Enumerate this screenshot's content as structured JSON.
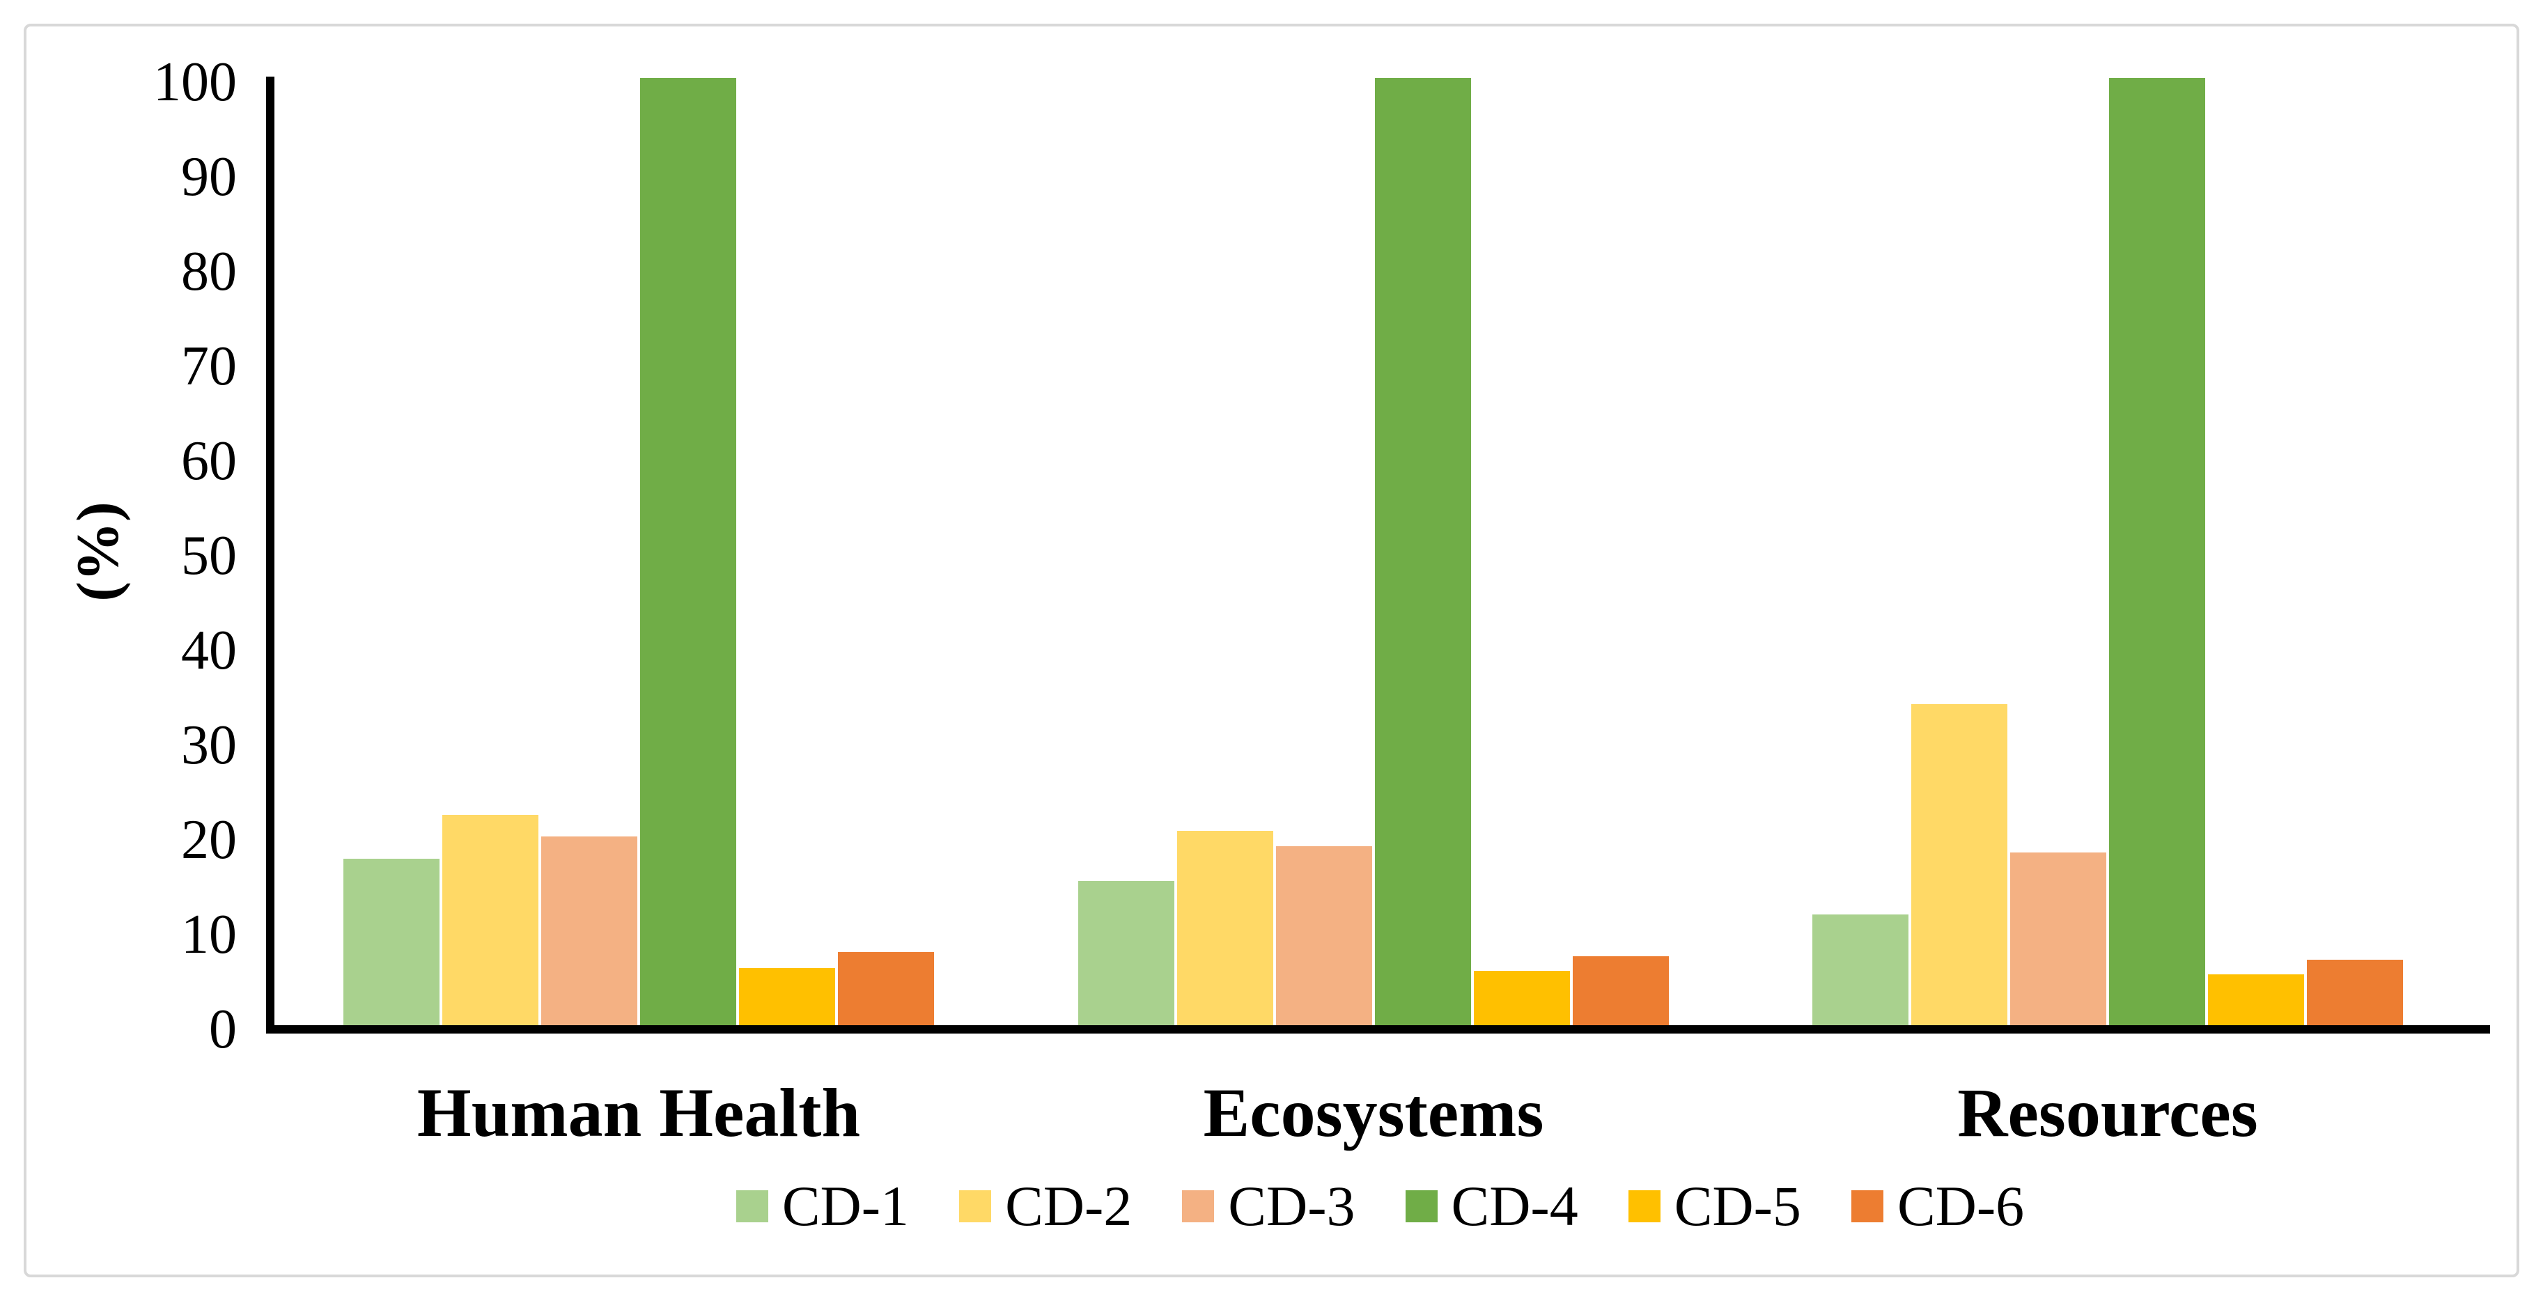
{
  "chart_data": {
    "type": "bar",
    "title": "",
    "xlabel": "",
    "ylabel": "(%)",
    "ylim": [
      0,
      100
    ],
    "y_tick_step": 10,
    "y_ticks": [
      0,
      10,
      20,
      30,
      40,
      50,
      60,
      70,
      80,
      90,
      100
    ],
    "grid": false,
    "legend_position": "bottom",
    "categories": [
      "Human Health",
      "Ecosystems",
      "Resources"
    ],
    "series": [
      {
        "name": "CD-1",
        "color": "#A9D18E",
        "values": [
          17.6,
          15.2,
          11.7
        ]
      },
      {
        "name": "CD-2",
        "color": "#FFD966",
        "values": [
          22.2,
          20.5,
          33.9
        ]
      },
      {
        "name": "CD-3",
        "color": "#F4B183",
        "values": [
          19.9,
          18.9,
          18.2
        ]
      },
      {
        "name": "CD-4",
        "color": "#70AD47",
        "values": [
          100,
          100,
          100
        ]
      },
      {
        "name": "CD-5",
        "color": "#FFC000",
        "values": [
          6.0,
          5.7,
          5.4
        ]
      },
      {
        "name": "CD-6",
        "color": "#ED7D31",
        "values": [
          7.7,
          7.3,
          6.9
        ]
      }
    ],
    "axis_color": "#000000",
    "frame_border_color": "#d8d8d8",
    "background_color": "#ffffff"
  }
}
